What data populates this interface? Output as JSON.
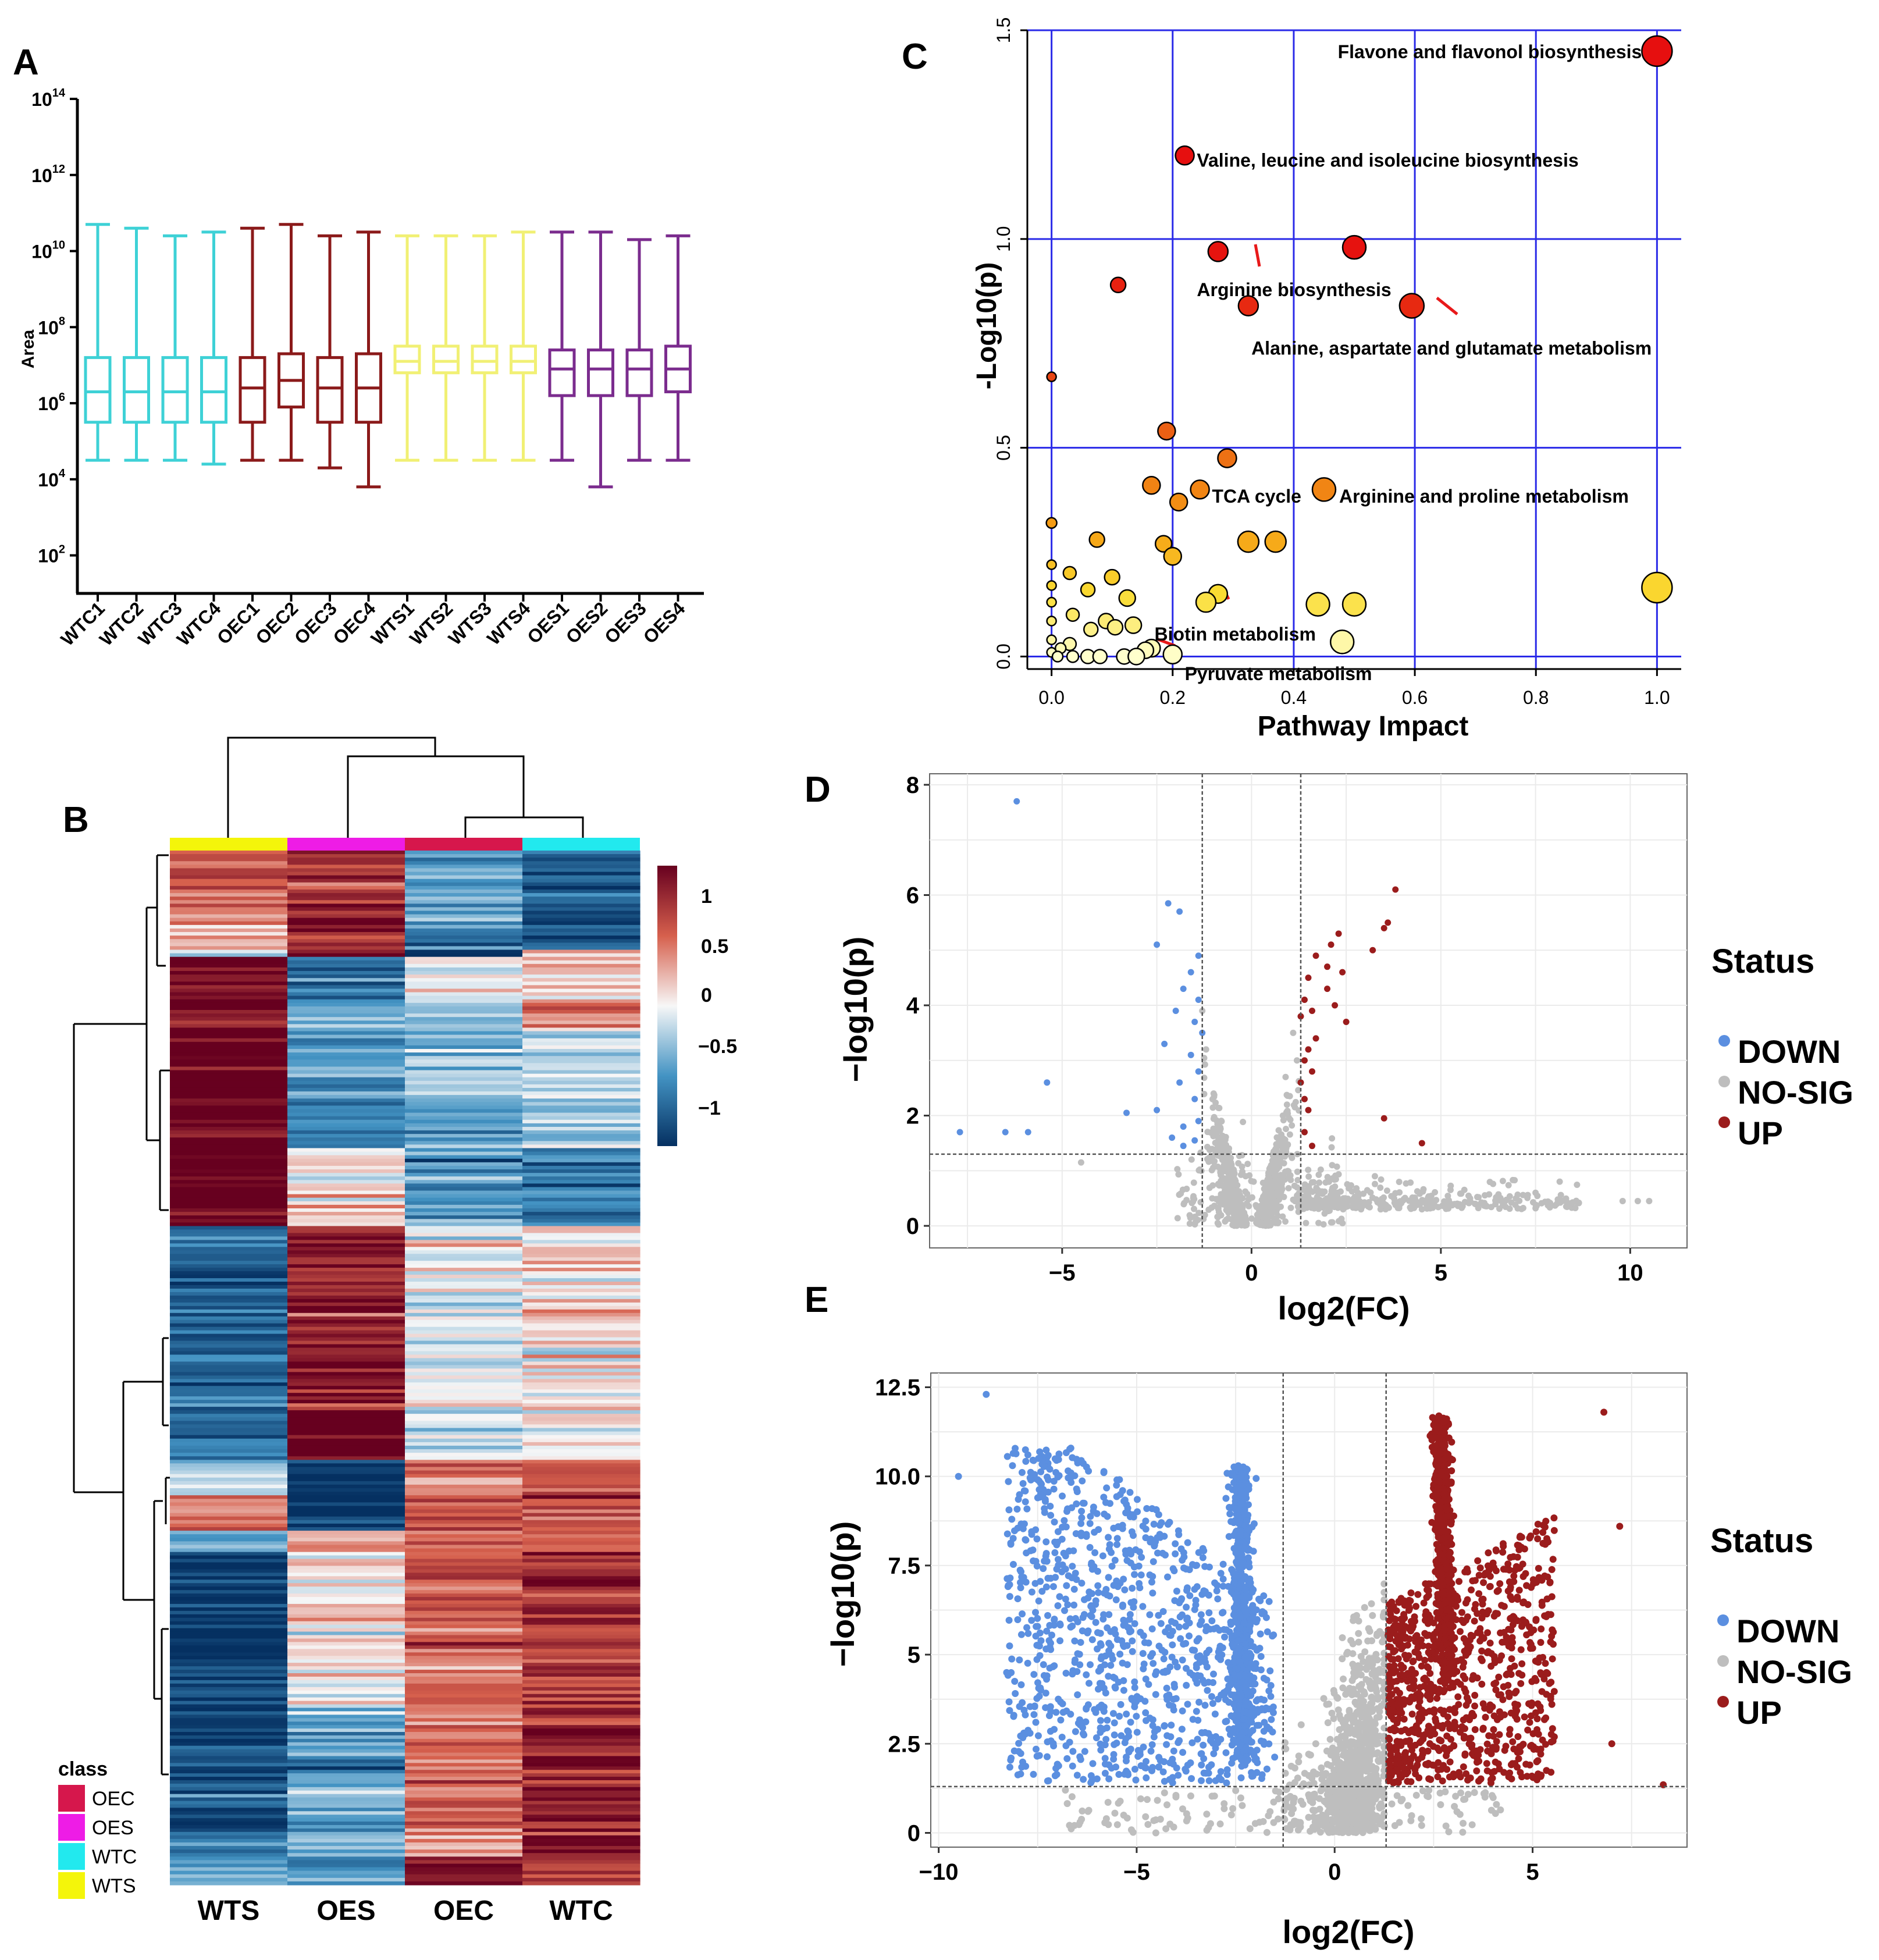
{
  "chart_data": [
    {
      "panel": "A",
      "type": "box",
      "ylabel": "Area",
      "yscale": "log10",
      "ylim_exp": [
        1,
        14
      ],
      "yticks": [
        {
          "base": "10",
          "exp": "2",
          "e": 2
        },
        {
          "base": "10",
          "exp": "4",
          "e": 4
        },
        {
          "base": "10",
          "exp": "6",
          "e": 6
        },
        {
          "base": "10",
          "exp": "8",
          "e": 8
        },
        {
          "base": "10",
          "exp": "10",
          "e": 10
        },
        {
          "base": "10",
          "exp": "12",
          "e": 12
        },
        {
          "base": "10",
          "exp": "14",
          "e": 14
        }
      ],
      "samples": [
        {
          "name": "WTC1",
          "color": "#3ED1D6",
          "whisker_low": 4.5,
          "q1": 5.5,
          "median": 6.3,
          "q3": 7.2,
          "whisker_high": 10.7
        },
        {
          "name": "WTC2",
          "color": "#3ED1D6",
          "whisker_low": 4.5,
          "q1": 5.5,
          "median": 6.3,
          "q3": 7.2,
          "whisker_high": 10.6
        },
        {
          "name": "WTC3",
          "color": "#3ED1D6",
          "whisker_low": 4.5,
          "q1": 5.5,
          "median": 6.3,
          "q3": 7.2,
          "whisker_high": 10.4
        },
        {
          "name": "WTC4",
          "color": "#3ED1D6",
          "whisker_low": 4.4,
          "q1": 5.5,
          "median": 6.3,
          "q3": 7.2,
          "whisker_high": 10.5
        },
        {
          "name": "OEC1",
          "color": "#8B1A1A",
          "whisker_low": 4.5,
          "q1": 5.5,
          "median": 6.4,
          "q3": 7.2,
          "whisker_high": 10.6
        },
        {
          "name": "OEC2",
          "color": "#8B1A1A",
          "whisker_low": 4.5,
          "q1": 5.9,
          "median": 6.6,
          "q3": 7.3,
          "whisker_high": 10.7
        },
        {
          "name": "OEC3",
          "color": "#8B1A1A",
          "whisker_low": 4.3,
          "q1": 5.5,
          "median": 6.4,
          "q3": 7.2,
          "whisker_high": 10.4
        },
        {
          "name": "OEC4",
          "color": "#8B1A1A",
          "whisker_low": 3.8,
          "q1": 5.5,
          "median": 6.4,
          "q3": 7.3,
          "whisker_high": 10.5
        },
        {
          "name": "WTS1",
          "color": "#F1F074",
          "whisker_low": 4.5,
          "q1": 6.8,
          "median": 7.1,
          "q3": 7.5,
          "whisker_high": 10.4
        },
        {
          "name": "WTS2",
          "color": "#F1F074",
          "whisker_low": 4.5,
          "q1": 6.8,
          "median": 7.1,
          "q3": 7.5,
          "whisker_high": 10.4
        },
        {
          "name": "WTS3",
          "color": "#F1F074",
          "whisker_low": 4.5,
          "q1": 6.8,
          "median": 7.1,
          "q3": 7.5,
          "whisker_high": 10.4
        },
        {
          "name": "WTS4",
          "color": "#F1F074",
          "whisker_low": 4.5,
          "q1": 6.8,
          "median": 7.1,
          "q3": 7.5,
          "whisker_high": 10.5
        },
        {
          "name": "OES1",
          "color": "#7B2C8E",
          "whisker_low": 4.5,
          "q1": 6.2,
          "median": 6.9,
          "q3": 7.4,
          "whisker_high": 10.5
        },
        {
          "name": "OES2",
          "color": "#7B2C8E",
          "whisker_low": 3.8,
          "q1": 6.2,
          "median": 6.9,
          "q3": 7.4,
          "whisker_high": 10.5
        },
        {
          "name": "OES3",
          "color": "#7B2C8E",
          "whisker_low": 4.5,
          "q1": 6.2,
          "median": 6.9,
          "q3": 7.4,
          "whisker_high": 10.3
        },
        {
          "name": "OES4",
          "color": "#7B2C8E",
          "whisker_low": 4.5,
          "q1": 6.3,
          "median": 6.9,
          "q3": 7.5,
          "whisker_high": 10.4
        }
      ]
    },
    {
      "panel": "B",
      "type": "heatmap",
      "columns": [
        "WTS",
        "OES",
        "OEC",
        "WTC"
      ],
      "column_classes": [
        "WTS",
        "OES",
        "OEC",
        "WTC"
      ],
      "scale_ticks": [
        "1",
        "0.5",
        "0",
        "−0.5",
        "−1"
      ],
      "scale_values": [
        1,
        0.5,
        0,
        -0.5,
        -1
      ],
      "legend_title": "class",
      "classes": [
        {
          "name": "OEC",
          "color": "#D6174C"
        },
        {
          "name": "OES",
          "color": "#EE1CE6"
        },
        {
          "name": "WTC",
          "color": "#22E9EE"
        },
        {
          "name": "WTS",
          "color": "#F4F50A"
        }
      ],
      "row_blocks": [
        {
          "weight": 10,
          "values": [
            0.55,
            0.75,
            -0.4,
            -0.8
          ]
        },
        {
          "weight": 4,
          "values": [
            0.3,
            0.85,
            -0.6,
            -0.9
          ]
        },
        {
          "weight": 1,
          "values": [
            -0.2,
            0.95,
            -1.1,
            0.3
          ]
        },
        {
          "weight": 6,
          "values": [
            0.95,
            -0.7,
            -0.05,
            0.1
          ]
        },
        {
          "weight": 4,
          "values": [
            0.95,
            -0.5,
            -0.3,
            0.4
          ]
        },
        {
          "weight": 10,
          "values": [
            1.1,
            -0.45,
            -0.3,
            -0.15
          ]
        },
        {
          "weight": 7,
          "values": [
            1.05,
            -0.6,
            -0.4,
            -0.2
          ]
        },
        {
          "weight": 11,
          "values": [
            1.05,
            0.1,
            -0.5,
            -0.6
          ]
        },
        {
          "weight": 26,
          "values": [
            -0.75,
            0.85,
            -0.05,
            0.1
          ]
        },
        {
          "weight": 7,
          "values": [
            -0.7,
            1.0,
            -0.1,
            0.05
          ]
        },
        {
          "weight": 5,
          "values": [
            -0.2,
            -0.9,
            0.5,
            0.55
          ]
        },
        {
          "weight": 5,
          "values": [
            0.4,
            -1.05,
            0.6,
            0.6
          ]
        },
        {
          "weight": 3,
          "values": [
            -0.5,
            0.3,
            0.5,
            0.35
          ]
        },
        {
          "weight": 22,
          "values": [
            -0.95,
            0.05,
            0.55,
            0.7
          ]
        },
        {
          "weight": 18,
          "values": [
            -0.85,
            -0.4,
            0.45,
            0.8
          ]
        },
        {
          "weight": 3,
          "values": [
            -0.6,
            -0.3,
            0.1,
            0.9
          ]
        },
        {
          "weight": 4,
          "values": [
            -0.5,
            -0.5,
            0.9,
            0.55
          ]
        }
      ]
    },
    {
      "panel": "C",
      "type": "scatter",
      "xlabel": "Pathway Impact",
      "ylabel": "-Log10(p)",
      "xlim": [
        -0.04,
        1.04
      ],
      "ylim": [
        -0.03,
        1.5
      ],
      "xticks": [
        "0.0",
        "0.2",
        "0.4",
        "0.6",
        "0.8",
        "1.0"
      ],
      "xtick_values": [
        0,
        0.2,
        0.4,
        0.6,
        0.8,
        1.0
      ],
      "yticks": [
        "0.0",
        "0.5",
        "1.0",
        "1.5"
      ],
      "ytick_values": [
        0,
        0.5,
        1.0,
        1.5
      ],
      "points": [
        {
          "x": 1.0,
          "y": 1.45,
          "s": 26
        },
        {
          "x": 0.22,
          "y": 1.2,
          "s": 16
        },
        {
          "x": 0.275,
          "y": 0.97,
          "s": 17
        },
        {
          "x": 0.5,
          "y": 0.98,
          "s": 20
        },
        {
          "x": 0.11,
          "y": 0.89,
          "s": 13
        },
        {
          "x": 0.325,
          "y": 0.84,
          "s": 17
        },
        {
          "x": 0.595,
          "y": 0.84,
          "s": 21
        },
        {
          "x": 0.0,
          "y": 0.67,
          "s": 8
        },
        {
          "x": 0.19,
          "y": 0.54,
          "s": 15
        },
        {
          "x": 0.29,
          "y": 0.475,
          "s": 16
        },
        {
          "x": 0.165,
          "y": 0.41,
          "s": 15
        },
        {
          "x": 0.245,
          "y": 0.4,
          "s": 16
        },
        {
          "x": 0.45,
          "y": 0.4,
          "s": 20
        },
        {
          "x": 0.21,
          "y": 0.37,
          "s": 15
        },
        {
          "x": 0.0,
          "y": 0.32,
          "s": 9
        },
        {
          "x": 0.075,
          "y": 0.28,
          "s": 13
        },
        {
          "x": 0.185,
          "y": 0.27,
          "s": 14
        },
        {
          "x": 0.325,
          "y": 0.275,
          "s": 18
        },
        {
          "x": 0.37,
          "y": 0.275,
          "s": 18
        },
        {
          "x": 0.2,
          "y": 0.24,
          "s": 15
        },
        {
          "x": 0.0,
          "y": 0.22,
          "s": 8
        },
        {
          "x": 0.03,
          "y": 0.2,
          "s": 11
        },
        {
          "x": 0.1,
          "y": 0.19,
          "s": 13
        },
        {
          "x": 0.0,
          "y": 0.17,
          "s": 8
        },
        {
          "x": 1.0,
          "y": 0.165,
          "s": 26
        },
        {
          "x": 0.06,
          "y": 0.16,
          "s": 12
        },
        {
          "x": 0.275,
          "y": 0.15,
          "s": 16
        },
        {
          "x": 0.125,
          "y": 0.14,
          "s": 14
        },
        {
          "x": 0.0,
          "y": 0.13,
          "s": 8
        },
        {
          "x": 0.255,
          "y": 0.13,
          "s": 17
        },
        {
          "x": 0.44,
          "y": 0.125,
          "s": 20
        },
        {
          "x": 0.5,
          "y": 0.125,
          "s": 20
        },
        {
          "x": 0.035,
          "y": 0.1,
          "s": 11
        },
        {
          "x": 0.0,
          "y": 0.085,
          "s": 8
        },
        {
          "x": 0.09,
          "y": 0.085,
          "s": 13
        },
        {
          "x": 0.135,
          "y": 0.075,
          "s": 14
        },
        {
          "x": 0.105,
          "y": 0.07,
          "s": 13
        },
        {
          "x": 0.065,
          "y": 0.065,
          "s": 12
        },
        {
          "x": 0.0,
          "y": 0.04,
          "s": 8
        },
        {
          "x": 0.48,
          "y": 0.035,
          "s": 20
        },
        {
          "x": 0.03,
          "y": 0.03,
          "s": 11
        },
        {
          "x": 0.015,
          "y": 0.02,
          "s": 9
        },
        {
          "x": 0.165,
          "y": 0.02,
          "s": 15
        },
        {
          "x": 0.155,
          "y": 0.015,
          "s": 14
        },
        {
          "x": 0.0,
          "y": 0.01,
          "s": 8
        },
        {
          "x": 0.01,
          "y": 0.0,
          "s": 9
        },
        {
          "x": 0.035,
          "y": 0.0,
          "s": 10
        },
        {
          "x": 0.06,
          "y": 0.0,
          "s": 12
        },
        {
          "x": 0.08,
          "y": 0.0,
          "s": 12
        },
        {
          "x": 0.12,
          "y": 0.0,
          "s": 13
        },
        {
          "x": 0.14,
          "y": 0.0,
          "s": 14
        },
        {
          "x": 0.2,
          "y": 0.005,
          "s": 16
        }
      ],
      "annotations": [
        {
          "text": "Flavone and flavonol biosynthesis",
          "x": 0.975,
          "y": 1.45,
          "anchor": "end"
        },
        {
          "text": "Valine, leucine and isoleucine biosynthesis",
          "x": 0.24,
          "y": 1.19,
          "anchor": "start"
        },
        {
          "text": "Arginine biosynthesis",
          "x": 0.24,
          "y": 0.88,
          "anchor": "start"
        },
        {
          "text": "Alanine, aspartate and glutamate metabolism",
          "x": 0.33,
          "y": 0.74,
          "anchor": "start"
        },
        {
          "text": "TCA cycle",
          "x": 0.265,
          "y": 0.385,
          "anchor": "start"
        },
        {
          "text": "Arginine and proline metabolism",
          "x": 0.475,
          "y": 0.385,
          "anchor": "start"
        },
        {
          "text": "Biotin metabolism",
          "x": 0.17,
          "y": 0.055,
          "anchor": "start"
        },
        {
          "text": "Pyruvate metabolism",
          "x": 0.22,
          "y": -0.04,
          "anchor": "start"
        }
      ]
    },
    {
      "panel": "D",
      "type": "volcano",
      "xlabel": "log2(FC)",
      "ylabel": "−log10(p)",
      "xlim": [
        -8.5,
        11.5
      ],
      "ylim": [
        -0.4,
        8.2
      ],
      "xticks": [
        "−5",
        "0",
        "5",
        "10"
      ],
      "xtick_values": [
        -5,
        0,
        5,
        10
      ],
      "yticks": [
        "0",
        "2",
        "4",
        "6",
        "8"
      ],
      "ytick_values": [
        0,
        2,
        4,
        6,
        8
      ],
      "fc_cutoff": [
        -1.3,
        1.3
      ],
      "p_cutoff": 1.3,
      "legend_title": "Status",
      "legend": [
        {
          "label": "DOWN",
          "color": "#5B8FE0"
        },
        {
          "label": "NO-SIG",
          "color": "#BEBEBE"
        },
        {
          "label": "UP",
          "color": "#9B1C1C"
        }
      ],
      "down_points": [
        [
          -6.2,
          7.7
        ],
        [
          -2.2,
          5.85
        ],
        [
          -1.9,
          5.7
        ],
        [
          -2.5,
          5.1
        ],
        [
          -1.4,
          4.9
        ],
        [
          -1.6,
          4.6
        ],
        [
          -1.8,
          4.3
        ],
        [
          -1.4,
          4.1
        ],
        [
          -2.0,
          3.9
        ],
        [
          -1.5,
          3.7
        ],
        [
          -1.3,
          3.5
        ],
        [
          -2.3,
          3.3
        ],
        [
          -1.6,
          3.1
        ],
        [
          -1.4,
          2.8
        ],
        [
          -1.9,
          2.6
        ],
        [
          -5.4,
          2.6
        ],
        [
          -1.5,
          2.3
        ],
        [
          -2.5,
          2.1
        ],
        [
          -3.3,
          2.05
        ],
        [
          -1.4,
          1.9
        ],
        [
          -1.8,
          1.8
        ],
        [
          -7.7,
          1.7
        ],
        [
          -6.5,
          1.7
        ],
        [
          -5.9,
          1.7
        ],
        [
          -2.1,
          1.6
        ],
        [
          -1.5,
          1.55
        ],
        [
          -1.8,
          1.45
        ]
      ],
      "up_points": [
        [
          3.8,
          6.1
        ],
        [
          3.6,
          5.5
        ],
        [
          3.5,
          5.4
        ],
        [
          2.3,
          5.3
        ],
        [
          2.1,
          5.1
        ],
        [
          3.2,
          5.0
        ],
        [
          1.7,
          4.9
        ],
        [
          2.0,
          4.7
        ],
        [
          2.4,
          4.6
        ],
        [
          1.5,
          4.5
        ],
        [
          2.0,
          4.3
        ],
        [
          1.4,
          4.1
        ],
        [
          2.2,
          4.0
        ],
        [
          1.6,
          3.9
        ],
        [
          1.3,
          3.8
        ],
        [
          2.5,
          3.7
        ],
        [
          1.7,
          3.4
        ],
        [
          1.5,
          3.2
        ],
        [
          1.4,
          3.0
        ],
        [
          1.6,
          2.8
        ],
        [
          1.3,
          2.6
        ],
        [
          1.4,
          2.3
        ],
        [
          1.5,
          2.1
        ],
        [
          3.5,
          1.95
        ],
        [
          1.4,
          1.7
        ],
        [
          4.5,
          1.5
        ],
        [
          1.6,
          1.45
        ]
      ],
      "nosig_count": 1200
    },
    {
      "panel": "E",
      "type": "volcano",
      "xlabel": "log2(FC)",
      "ylabel": "−log10(p)",
      "xlim": [
        -10.2,
        8.9
      ],
      "ylim": [
        -0.4,
        12.9
      ],
      "xticks": [
        "−10",
        "−5",
        "0",
        "5"
      ],
      "xtick_values": [
        -10,
        -5,
        0,
        5
      ],
      "yticks": [
        "0",
        "2.5",
        "5",
        "7.5",
        "10.0",
        "12.5"
      ],
      "ytick_values": [
        0,
        2.5,
        5,
        7.5,
        10,
        12.5
      ],
      "fc_cutoff": [
        -1.3,
        1.3
      ],
      "p_cutoff": 1.3,
      "legend_title": "Status",
      "legend": [
        {
          "label": "DOWN",
          "color": "#5B8FE0"
        },
        {
          "label": "NO-SIG",
          "color": "#BEBEBE"
        },
        {
          "label": "UP",
          "color": "#9B1C1C"
        }
      ],
      "down_count": 1700,
      "up_count": 1600,
      "nosig_count": 1100,
      "extreme_points": [
        [
          -8.8,
          12.3
        ],
        [
          6.8,
          11.8
        ],
        [
          -9.5,
          10.0
        ],
        [
          7.2,
          8.6
        ],
        [
          7.0,
          2.5
        ],
        [
          -6.8,
          1.2
        ],
        [
          8.3,
          1.35
        ]
      ]
    }
  ]
}
